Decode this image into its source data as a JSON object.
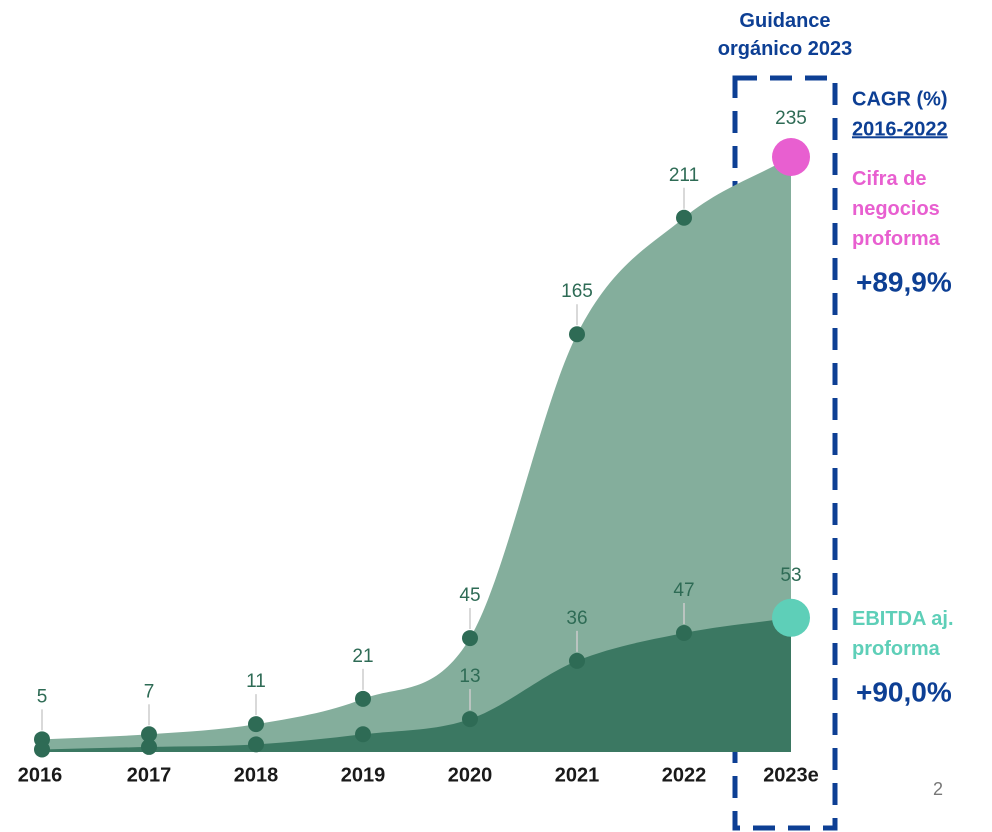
{
  "chart_data": {
    "type": "area",
    "title": "Guidance orgánico 2023",
    "categories": [
      "2016",
      "2017",
      "2018",
      "2019",
      "2020",
      "2021",
      "2022",
      "2023e"
    ],
    "cagr_header": "CAGR (%)",
    "cagr_period": "2016-2022",
    "series": [
      {
        "name": "Cifra de negocios proforma",
        "color": "#84ae9c",
        "marker_color": "#e85fd0",
        "cagr": "+89,9%",
        "values": [
          5,
          7,
          11,
          21,
          45,
          165,
          211,
          235
        ]
      },
      {
        "name": "EBITDA aj. proforma",
        "color": "#3b7862",
        "marker_color": "#5ecfb8",
        "cagr": "+90,0%",
        "values": [
          1,
          2,
          3,
          7,
          13,
          36,
          47,
          53
        ],
        "value_labels": [
          null,
          null,
          null,
          null,
          "13",
          "36",
          "47",
          "53"
        ]
      }
    ],
    "page_number": "2"
  }
}
